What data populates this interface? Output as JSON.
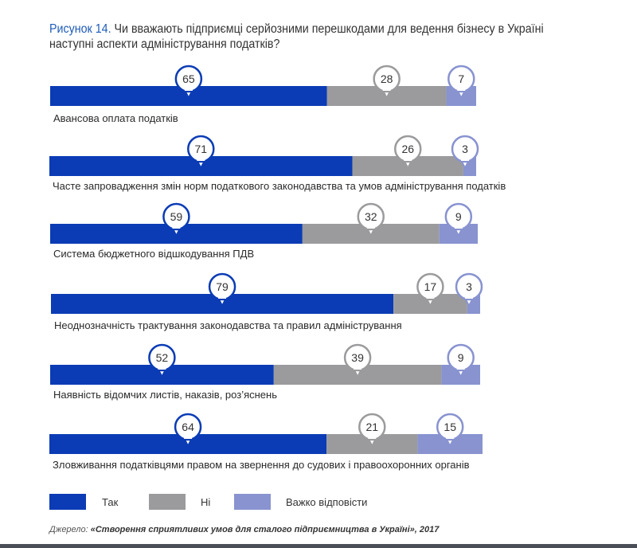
{
  "title": {
    "figure_label": "Рисунок 14.",
    "text": "Чи вважають підприємці серйозними перешкодами для ведення бізнесу в Україні наступні аспекти адміністрування податків?"
  },
  "chart_data": {
    "type": "bar",
    "stacked": true,
    "orientation": "horizontal",
    "unit": "%",
    "categories": [
      "Авансова оплата податків",
      "Часте запровадження змін норм податкового законодавства та умов адміністрування податків",
      "Система бюджетного відшкодування ПДВ",
      "Неоднозначність трактування законодавства та правил адміністрування",
      "Наявність відомчих листів, наказів, роз’яснень",
      "Зловживання податківцями правом на звернення до судових і правоохоронних органів"
    ],
    "series": [
      {
        "name": "Так",
        "color": "#0b3cb5",
        "values": [
          65,
          71,
          59,
          79,
          52,
          64
        ]
      },
      {
        "name": "Ні",
        "color": "#9b9b9d",
        "values": [
          28,
          26,
          32,
          17,
          39,
          21
        ]
      },
      {
        "name": "Важко відповісти",
        "color": "#8893d0",
        "values": [
          7,
          3,
          9,
          3,
          9,
          15
        ]
      }
    ],
    "xlim": [
      0,
      100
    ],
    "grid": false,
    "legend_position": "bottom"
  },
  "source": {
    "prefix": "Джерело: ",
    "text": "«Створення сприятливих умов для сталого підприємництва в Україні», 2017"
  }
}
